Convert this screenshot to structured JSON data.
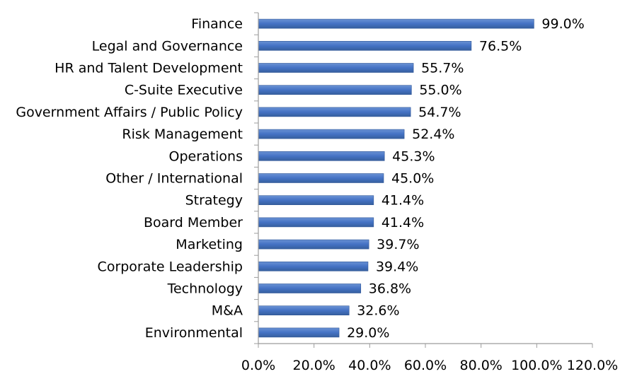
{
  "chart_data": {
    "type": "bar",
    "orientation": "horizontal",
    "categories": [
      "Finance",
      "Legal and Governance",
      "HR and Talent Development",
      "C-Suite Executive",
      "Government Affairs / Public Policy",
      "Risk Management",
      "Operations",
      "Other / International",
      "Strategy",
      "Board Member",
      "Marketing",
      "Corporate Leadership",
      "Technology",
      "M&A",
      "Environmental"
    ],
    "values": [
      99.0,
      76.5,
      55.7,
      55.0,
      54.7,
      52.4,
      45.3,
      45.0,
      41.4,
      41.4,
      39.7,
      39.4,
      36.8,
      32.6,
      29.0
    ],
    "value_labels": [
      "99.0%",
      "76.5%",
      "55.7%",
      "55.0%",
      "54.7%",
      "52.4%",
      "45.3%",
      "45.0%",
      "41.4%",
      "41.4%",
      "39.7%",
      "39.4%",
      "36.8%",
      "32.6%",
      "29.0%"
    ],
    "xlim": [
      0,
      120
    ],
    "xticks": [
      0,
      20,
      40,
      60,
      80,
      100,
      120
    ],
    "xtick_labels": [
      "0.0%",
      "20.0%",
      "40.0%",
      "60.0%",
      "80.0%",
      "100.0%",
      "120.0%"
    ],
    "title": "",
    "xlabel": "",
    "ylabel": "",
    "grid": false,
    "legend": "none",
    "bar_color": "#4472C4",
    "bar_edge_color": "#2E5597",
    "axis_color": "#9C9C9C"
  }
}
